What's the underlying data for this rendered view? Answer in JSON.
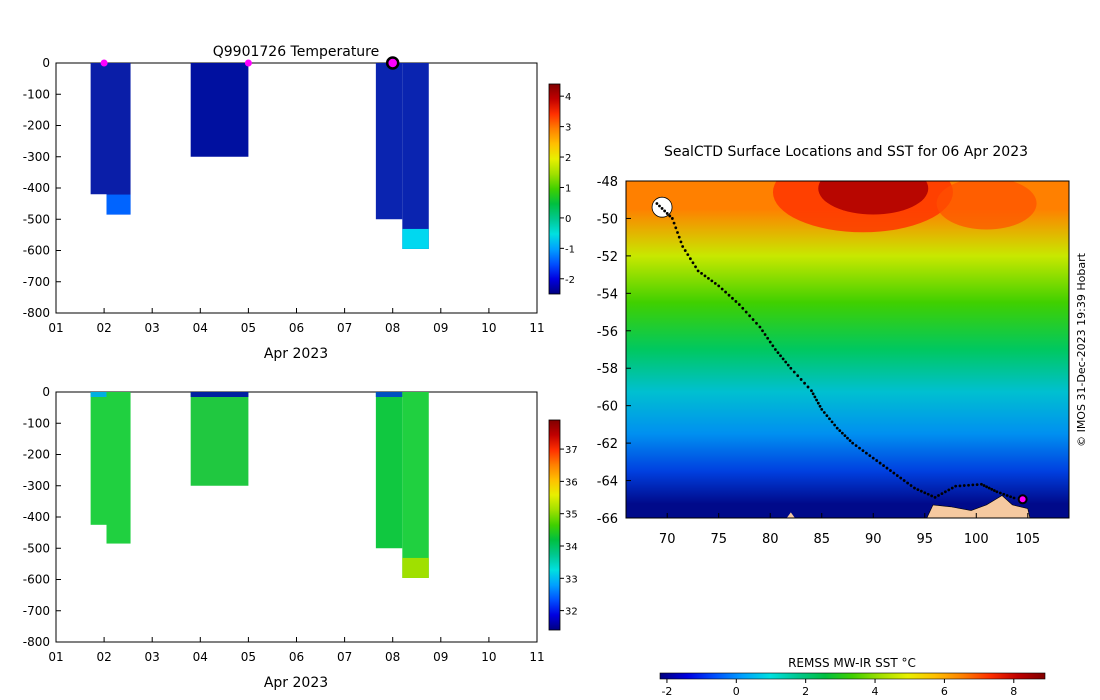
{
  "colors": {
    "deep_blue": "#000a8a",
    "land": "#f5c9a0",
    "marker_magenta": "#ff00ff",
    "track": "#000000"
  },
  "colormap": [
    "#00007f",
    "#0000e0",
    "#0050ff",
    "#00a0ff",
    "#00e0e0",
    "#00c890",
    "#00c040",
    "#40d000",
    "#a0e000",
    "#e8f000",
    "#ffc000",
    "#ff8000",
    "#ff3000",
    "#c00000",
    "#800000"
  ],
  "chart_data": [
    {
      "type": "heatmap",
      "title": "Q9901726  Temperature",
      "xlabel": "Apr 2023",
      "ylabel": "",
      "x_ticks": [
        "01",
        "02",
        "03",
        "04",
        "05",
        "06",
        "07",
        "08",
        "09",
        "10",
        "11"
      ],
      "xlim": [
        1,
        11
      ],
      "y_ticks": [
        0,
        -100,
        -200,
        -300,
        -400,
        -500,
        -600,
        -700,
        -800
      ],
      "ylim": [
        -800,
        0
      ],
      "colorbar": {
        "ticks": [
          4,
          3,
          2,
          1,
          0,
          -1,
          -2
        ],
        "range": [
          -2.5,
          4.4
        ]
      },
      "profiles": [
        {
          "x_start": 1.72,
          "x_end": 2.05,
          "max_depth": 420,
          "color": "#0a1ea8"
        },
        {
          "x_start": 2.05,
          "x_end": 2.55,
          "max_depth": 485,
          "color": "#0a1ea8",
          "bottom_color": "#0064ff"
        },
        {
          "x_start": 3.8,
          "x_end": 5.0,
          "max_depth": 300,
          "color": "#0010a0"
        },
        {
          "x_start": 7.65,
          "x_end": 8.2,
          "max_depth": 500,
          "color": "#0a24b0"
        },
        {
          "x_start": 8.2,
          "x_end": 8.75,
          "max_depth": 595,
          "color": "#0a24b0",
          "bottom_color": "#00d8f0"
        }
      ],
      "surface_markers": [
        {
          "x": 2.0,
          "y": 0
        },
        {
          "x": 5.0,
          "y": 0
        },
        {
          "x": 8.0,
          "y": 0,
          "highlight": true
        }
      ]
    },
    {
      "type": "heatmap",
      "title": "",
      "xlabel": "Apr 2023",
      "ylabel": "",
      "x_ticks": [
        "01",
        "02",
        "03",
        "04",
        "05",
        "06",
        "07",
        "08",
        "09",
        "10",
        "11"
      ],
      "xlim": [
        1,
        11
      ],
      "y_ticks": [
        0,
        -100,
        -200,
        -300,
        -400,
        -500,
        -600,
        -700,
        -800
      ],
      "ylim": [
        -800,
        0
      ],
      "colorbar": {
        "ticks": [
          37,
          36,
          35,
          34,
          33,
          32
        ],
        "range": [
          31.4,
          37.9
        ]
      },
      "profiles": [
        {
          "x_start": 1.72,
          "x_end": 2.05,
          "max_depth": 425,
          "color": "#20d040",
          "top_color": "#00b0e0"
        },
        {
          "x_start": 2.05,
          "x_end": 2.55,
          "max_depth": 485,
          "color": "#20d040"
        },
        {
          "x_start": 3.8,
          "x_end": 5.0,
          "max_depth": 300,
          "color": "#20c840",
          "top_color": "#0020a0"
        },
        {
          "x_start": 7.65,
          "x_end": 8.2,
          "max_depth": 500,
          "color": "#10c840",
          "top_color": "#0050c0"
        },
        {
          "x_start": 8.2,
          "x_end": 8.75,
          "max_depth": 595,
          "color": "#20d040",
          "bottom_color": "#a0e000"
        }
      ]
    },
    {
      "type": "heatmap",
      "title": "SealCTD Surface Locations and SST for 06 Apr 2023",
      "xlabel": "",
      "ylabel": "",
      "x_ticks": [
        70,
        75,
        80,
        85,
        90,
        95,
        100,
        105
      ],
      "xlim": [
        66,
        109
      ],
      "y_ticks": [
        -48,
        -50,
        -52,
        -54,
        -56,
        -58,
        -60,
        -62,
        -64,
        -66
      ],
      "ylim": [
        -66,
        -48
      ],
      "side_label": "© IMOS 31-Dec-2023 19:39 Hobart",
      "colorbar_title": "REMSS MW-IR SST °C",
      "colorbar_ticks": [
        -2,
        0,
        2,
        4,
        6,
        8
      ],
      "colorbar_range": [
        -2.2,
        8.9
      ],
      "sst_bands": [
        {
          "lat_top": -48,
          "lat_bottom": -51,
          "color": "#ff8000"
        },
        {
          "lat_top": -51,
          "lat_bottom": -53,
          "color": "#c8e800"
        },
        {
          "lat_top": -53,
          "lat_bottom": -56,
          "color": "#40d000"
        },
        {
          "lat_top": -56,
          "lat_bottom": -58,
          "color": "#00c860"
        },
        {
          "lat_top": -58,
          "lat_bottom": -60.5,
          "color": "#00c0d0"
        },
        {
          "lat_top": -60.5,
          "lat_bottom": -62.5,
          "color": "#0090f0"
        },
        {
          "lat_top": -62.5,
          "lat_bottom": -64.5,
          "color": "#0040e0"
        },
        {
          "lat_top": -64.5,
          "lat_bottom": -66,
          "color": "#000a8a"
        }
      ],
      "track": [
        [
          69.0,
          -49.2
        ],
        [
          70.5,
          -50.0
        ],
        [
          71.5,
          -51.5
        ],
        [
          73.0,
          -52.8
        ],
        [
          75.0,
          -53.6
        ],
        [
          77.0,
          -54.6
        ],
        [
          79.0,
          -55.8
        ],
        [
          80.5,
          -57.0
        ],
        [
          82.0,
          -58.0
        ],
        [
          84.0,
          -59.2
        ],
        [
          85.0,
          -60.2
        ],
        [
          86.5,
          -61.2
        ],
        [
          88.0,
          -62.0
        ],
        [
          90.0,
          -62.8
        ],
        [
          92.0,
          -63.6
        ],
        [
          94.0,
          -64.4
        ],
        [
          96.0,
          -64.9
        ],
        [
          98.0,
          -64.3
        ],
        [
          100.5,
          -64.2
        ],
        [
          102.0,
          -64.6
        ],
        [
          104.0,
          -65.0
        ]
      ],
      "current_position": [
        104.5,
        -65.0
      ]
    }
  ]
}
